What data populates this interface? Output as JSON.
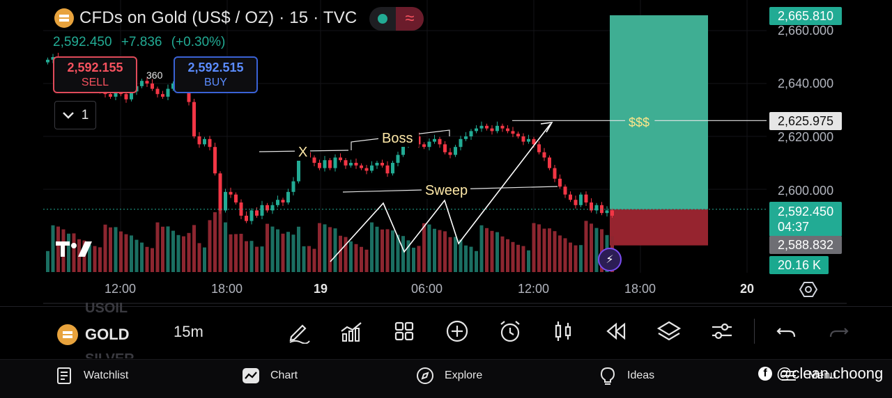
{
  "header": {
    "title": "CFDs on Gold (US$ / OZ) · 15 · TVC",
    "last_price": "2,592.450",
    "change": "+7.836",
    "change_pct": "(+0.30%)"
  },
  "trade": {
    "sell_price": "2,592.155",
    "sell_label": "SELL",
    "buy_price": "2,592.515",
    "buy_label": "BUY",
    "spread": "360",
    "quantity": "1"
  },
  "price_axis": {
    "ticks": [
      "2,660.000",
      "2,640.000",
      "2,620.000",
      "2,600.000"
    ],
    "target_label": "2,665.810",
    "line_label": "2,625.975",
    "current_price": "2,592.450",
    "countdown": "04:37",
    "stop_label": "2,588.832",
    "volume_label": "20.16 K"
  },
  "time_axis": [
    "12:00",
    "18:00",
    "19",
    "06:00",
    "12:00",
    "18:00",
    "20"
  ],
  "annotations": {
    "x_label": "X",
    "boss_label": "Boss",
    "sweep_label": "Sweep",
    "target_text": "$$$"
  },
  "symbol_bar": {
    "prev_symbol": "USOIL",
    "symbol": "GOLD",
    "next_symbol": "SILVER",
    "timeframe": "15m"
  },
  "toolbar_icons": [
    "pencil-icon",
    "chart-bars-icon",
    "grid-icon",
    "plus-circle-icon",
    "alarm-icon",
    "candles-icon",
    "rewind-icon",
    "layers-icon",
    "sliders-icon",
    "undo-icon",
    "redo-icon"
  ],
  "nav": {
    "watchlist": "Watchlist",
    "chart": "Chart",
    "explore": "Explore",
    "ideas": "Ideas",
    "menu": "Menu"
  },
  "watermark": {
    "handle": "@clean.choong"
  },
  "colors": {
    "up": "#22ab94",
    "down": "#f23645",
    "target_zone": "#3fae93",
    "stop_zone": "#96242f",
    "accent_blue": "#3a62d6"
  },
  "chart_data": {
    "type": "candlestick",
    "y_range": [
      2580,
      2668
    ],
    "close_path": [
      2649,
      2650,
      2648,
      2646,
      2647,
      2644,
      2643,
      2641,
      2642,
      2640,
      2637,
      2636,
      2635,
      2638,
      2636,
      2634,
      2637,
      2639,
      2641,
      2640,
      2638,
      2636,
      2635,
      2638,
      2640,
      2641,
      2639,
      2633,
      2620,
      2617,
      2619,
      2616,
      2606,
      2592,
      2599,
      2598,
      2595,
      2590,
      2588,
      2592,
      2590,
      2594,
      2592,
      2594,
      2596,
      2595,
      2599,
      2603,
      2614,
      2614,
      2612,
      2610,
      2608,
      2611,
      2608,
      2612,
      2611,
      2609,
      2610,
      2609,
      2608,
      2607,
      2609,
      2610,
      2609,
      2606,
      2610,
      2613,
      2617,
      2620,
      2620,
      2617,
      2616,
      2618,
      2619,
      2617,
      2614,
      2613,
      2616,
      2619,
      2620,
      2622,
      2623,
      2624,
      2623,
      2622,
      2624,
      2623,
      2622,
      2621,
      2620,
      2618,
      2619,
      2617,
      2614,
      2612,
      2608,
      2604,
      2601,
      2598,
      2596,
      2594,
      2598,
      2595,
      2592,
      2594,
      2591,
      2592,
      2590
    ],
    "trade_zone": {
      "entry": 2592.45,
      "take_profit": 2665.81,
      "stop": 2588.832
    },
    "horizontal_line": 2625.975
  }
}
